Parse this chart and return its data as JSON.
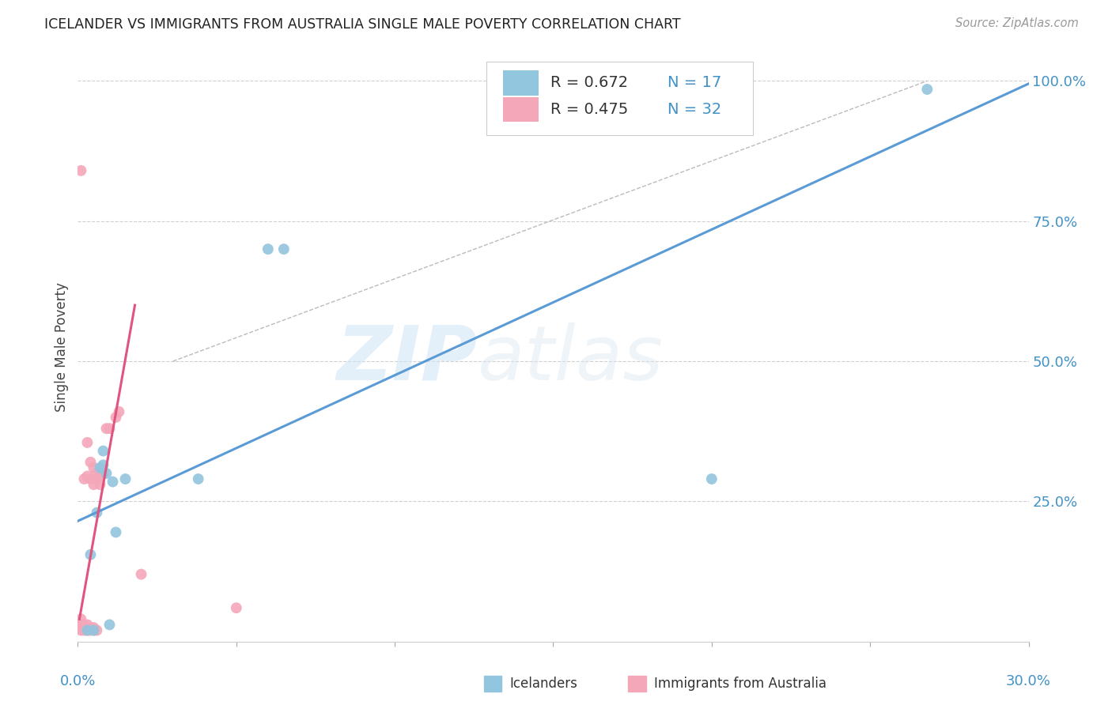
{
  "title": "ICELANDER VS IMMIGRANTS FROM AUSTRALIA SINGLE MALE POVERTY CORRELATION CHART",
  "source": "Source: ZipAtlas.com",
  "ylabel": "Single Male Poverty",
  "right_axis_labels": [
    "100.0%",
    "75.0%",
    "50.0%",
    "25.0%"
  ],
  "blue_color": "#92c5de",
  "pink_color": "#f4a7b9",
  "blue_line_color": "#5b9bd5",
  "pink_line_color": "#e05580",
  "watermark_zip": "ZIP",
  "watermark_atlas": "atlas",
  "background_color": "#ffffff",
  "grid_color": "#d0d0d0",
  "xlim": [
    0.0,
    0.3
  ],
  "ylim": [
    0.0,
    1.05
  ],
  "blue_points_x": [
    0.003,
    0.004,
    0.005,
    0.006,
    0.007,
    0.008,
    0.008,
    0.009,
    0.01,
    0.011,
    0.012,
    0.015,
    0.038,
    0.06,
    0.065,
    0.2,
    0.268
  ],
  "blue_points_y": [
    0.02,
    0.155,
    0.02,
    0.23,
    0.31,
    0.315,
    0.34,
    0.3,
    0.03,
    0.285,
    0.195,
    0.29,
    0.29,
    0.7,
    0.7,
    0.29,
    0.985
  ],
  "pink_points_x": [
    0.001,
    0.001,
    0.001,
    0.001,
    0.001,
    0.002,
    0.002,
    0.002,
    0.002,
    0.003,
    0.003,
    0.003,
    0.003,
    0.004,
    0.004,
    0.004,
    0.005,
    0.005,
    0.005,
    0.005,
    0.006,
    0.006,
    0.006,
    0.007,
    0.007,
    0.008,
    0.009,
    0.01,
    0.012,
    0.013,
    0.02,
    0.05
  ],
  "pink_points_y": [
    0.02,
    0.025,
    0.03,
    0.04,
    0.84,
    0.02,
    0.025,
    0.03,
    0.29,
    0.02,
    0.03,
    0.295,
    0.355,
    0.02,
    0.29,
    0.32,
    0.02,
    0.025,
    0.28,
    0.31,
    0.02,
    0.29,
    0.3,
    0.28,
    0.295,
    0.3,
    0.38,
    0.38,
    0.4,
    0.41,
    0.12,
    0.06
  ],
  "blue_line_x": [
    0.0,
    0.3
  ],
  "blue_line_y": [
    0.215,
    0.995
  ],
  "pink_line_x": [
    0.0005,
    0.018
  ],
  "pink_line_y": [
    0.04,
    0.6
  ],
  "dashed_line_x": [
    0.03,
    0.268
  ],
  "dashed_line_y": [
    0.5,
    1.0
  ],
  "legend_R_blue": "R = 0.672",
  "legend_N_blue": "N = 17",
  "legend_R_pink": "R = 0.475",
  "legend_N_pink": "N = 32",
  "legend_label_blue": "Icelanders",
  "legend_label_pink": "Immigrants from Australia"
}
